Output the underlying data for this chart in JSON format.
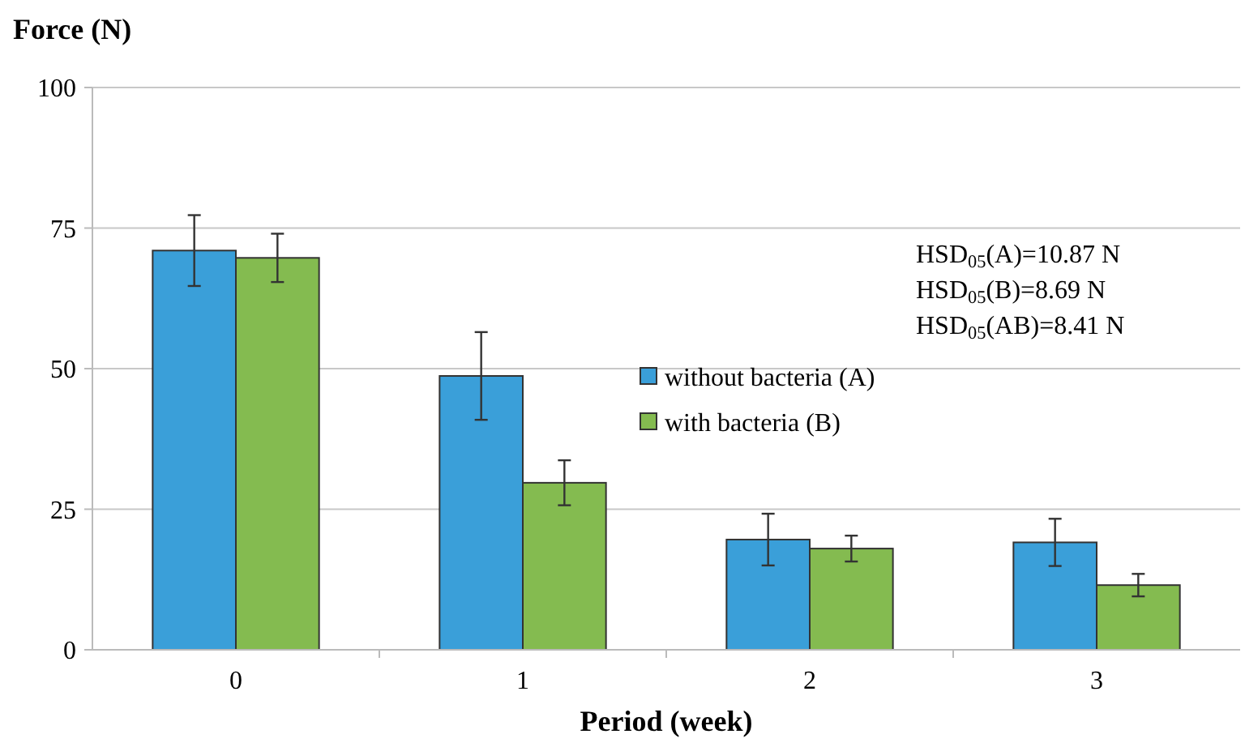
{
  "chart_data": {
    "type": "bar",
    "xlabel": "Period (week)",
    "ylabel": "Force (N)",
    "categories": [
      "0",
      "1",
      "2",
      "3"
    ],
    "series": [
      {
        "name": "without bacteria (A)",
        "color": "#3a9fd9",
        "values": [
          71,
          48.7,
          19.6,
          19.1
        ],
        "errors": [
          6.3,
          7.8,
          4.6,
          4.2
        ]
      },
      {
        "name": "with bacteria (B)",
        "color": "#84bb50",
        "values": [
          69.7,
          29.7,
          18,
          11.5
        ],
        "errors": [
          4.3,
          4,
          2.3,
          2
        ]
      }
    ],
    "ylim": [
      0,
      100
    ],
    "yticks": [
      0,
      25,
      50,
      75,
      100
    ],
    "grid": "y",
    "legend": "right",
    "annotations": [
      "HSD$_{05}$(A)=10.87 N",
      "HSD$_{05}$(B)=8.69 N",
      "HSD$_{05}$(AB)=8.41 N"
    ]
  }
}
